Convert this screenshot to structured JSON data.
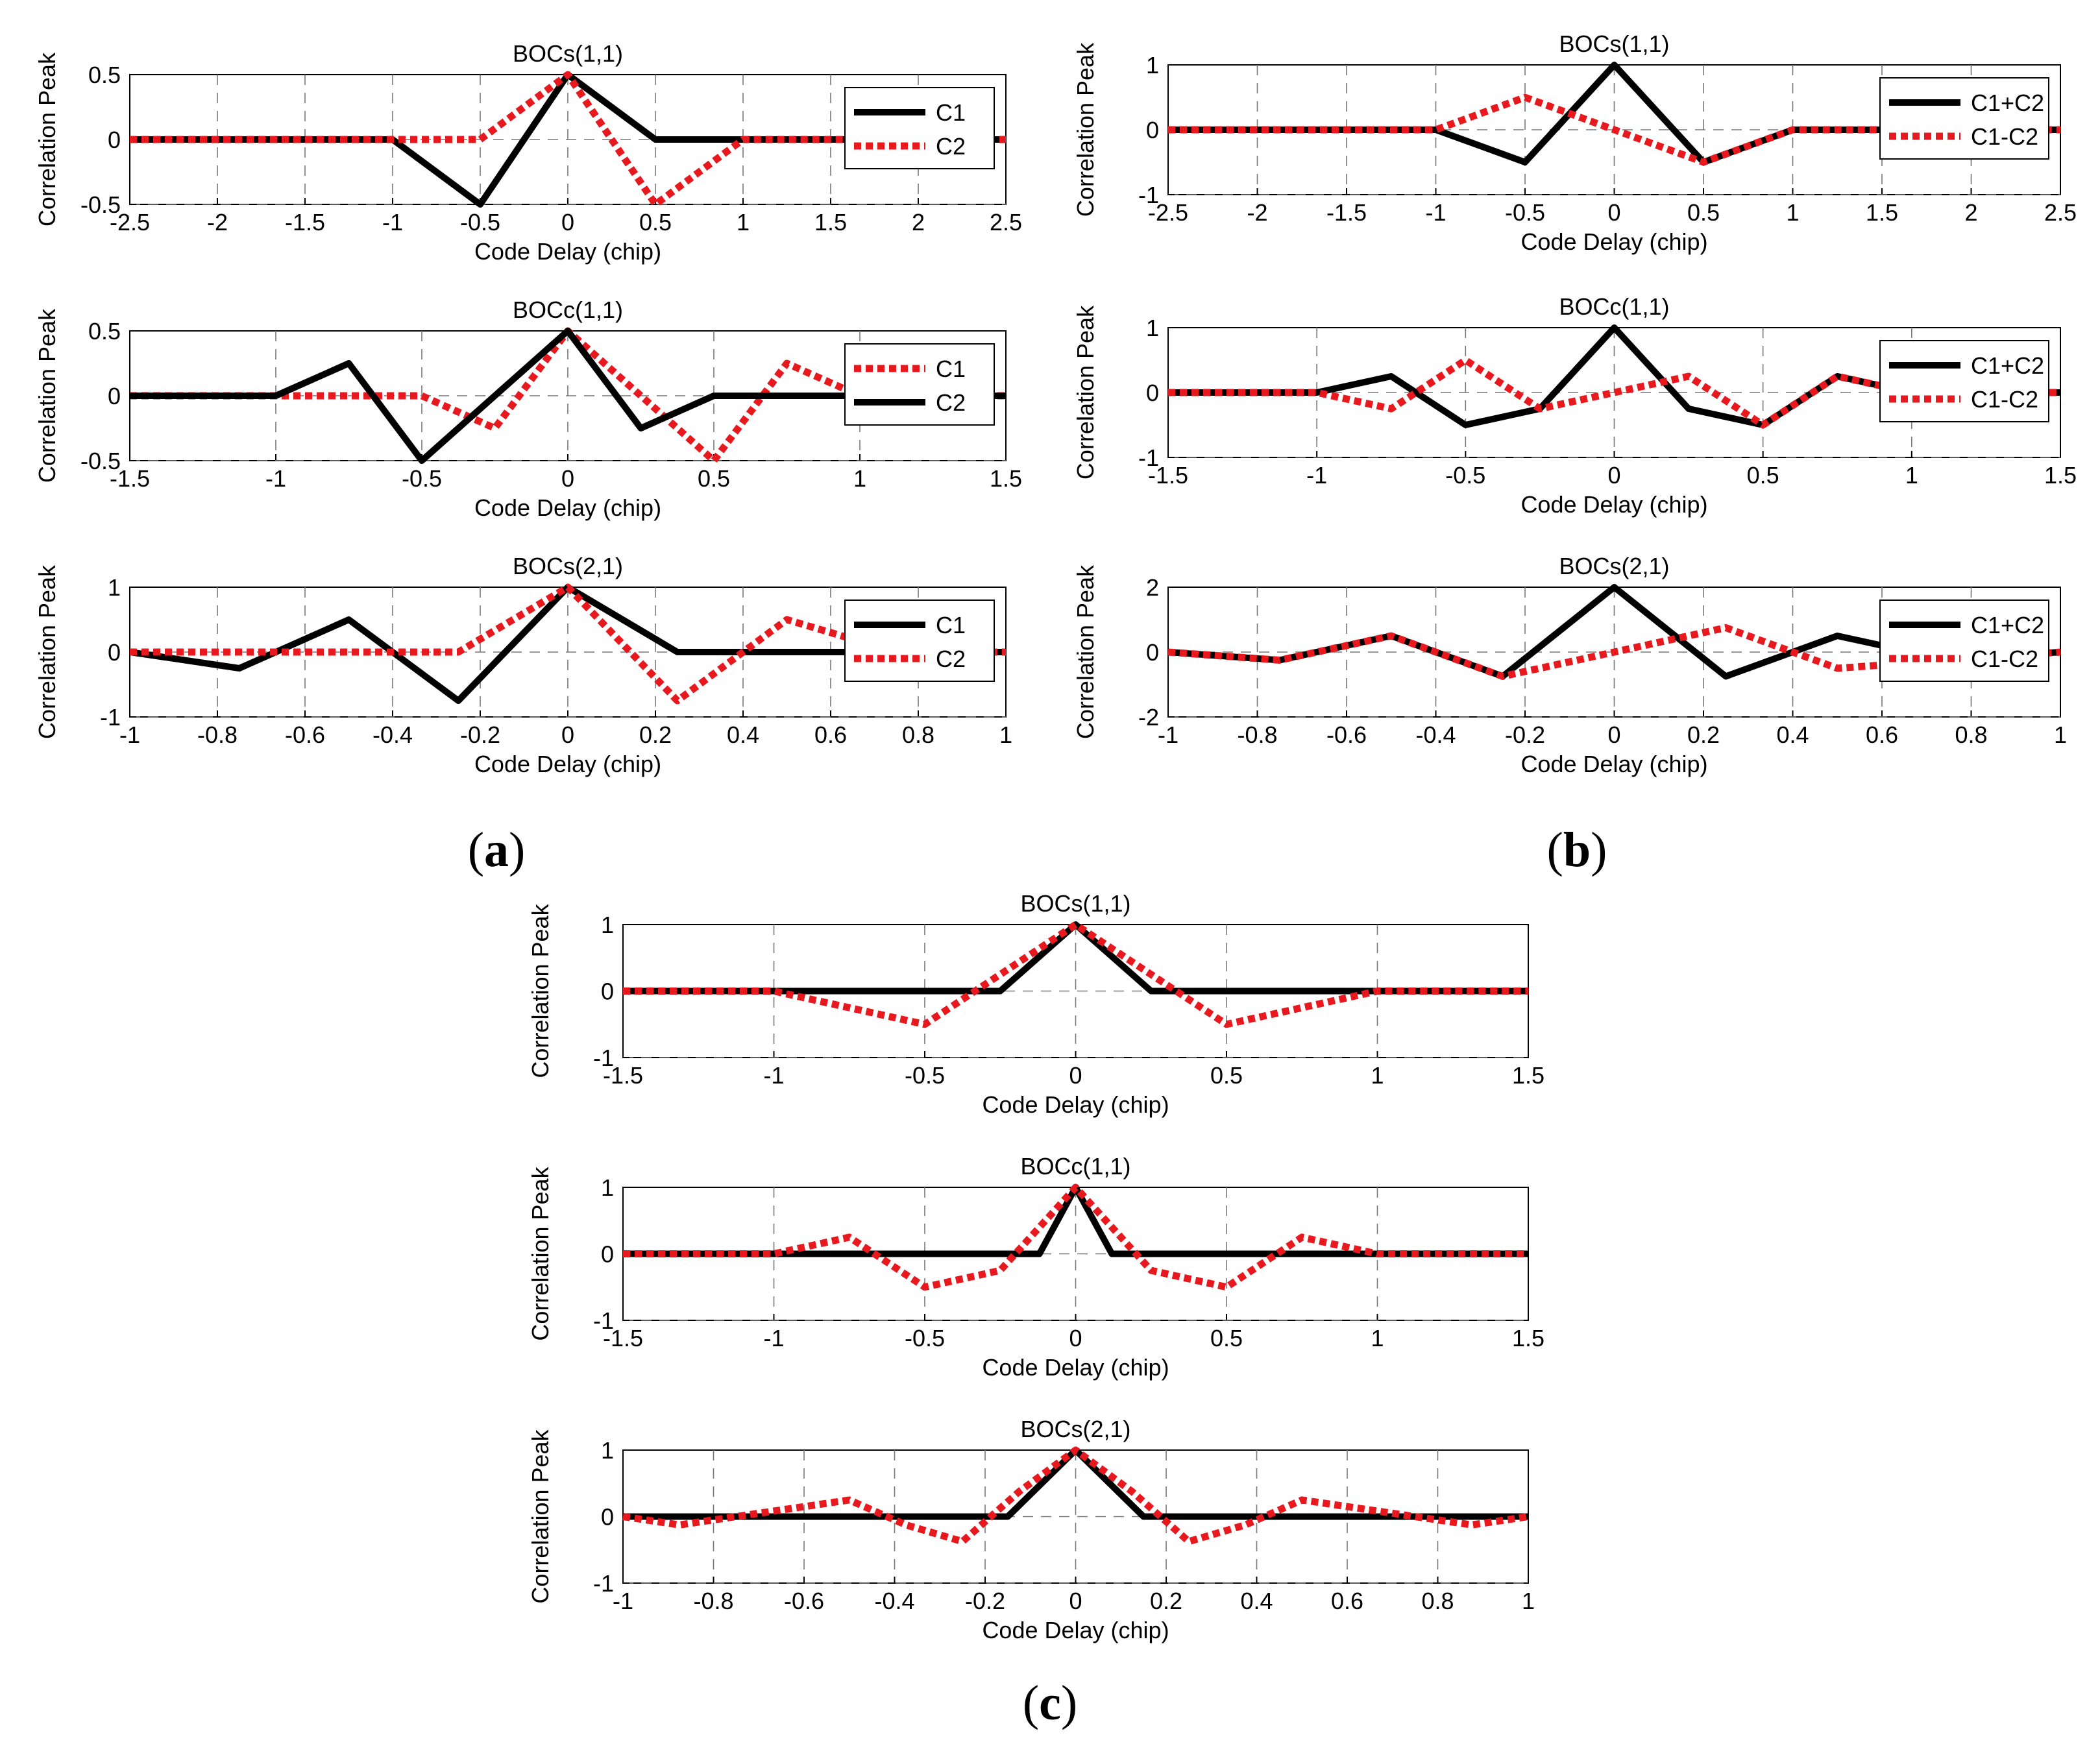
{
  "panel_labels": {
    "a": "a",
    "b": "b",
    "c": "c"
  },
  "chart_data": [
    {
      "id": "a1",
      "type": "line",
      "title": "BOCs(1,1)",
      "xlabel": "Code Delay (chip)",
      "ylabel": "Correlation Peak",
      "xlim": [
        -2.5,
        2.5
      ],
      "ylim": [
        -0.5,
        0.5
      ],
      "xticks": [
        "-2.5",
        "-2",
        "-1.5",
        "-1",
        "-0.5",
        "0",
        "0.5",
        "1",
        "1.5",
        "2",
        "2.5"
      ],
      "yticks": [
        "-0.5",
        "0",
        "0.5"
      ],
      "legend": "top-right",
      "series": [
        {
          "name": "C1",
          "color": "#000000",
          "style": "solid",
          "x": [
            -2.5,
            -1,
            -0.5,
            0,
            0.5,
            2.5
          ],
          "y": [
            0,
            0,
            -0.5,
            0.5,
            0,
            0
          ]
        },
        {
          "name": "C2",
          "color": "#e8191e",
          "style": "dotted",
          "x": [
            -2.5,
            -0.5,
            0,
            0.5,
            1,
            2.5
          ],
          "y": [
            0,
            0,
            0.5,
            -0.5,
            0,
            0
          ]
        }
      ]
    },
    {
      "id": "a2",
      "type": "line",
      "title": "BOCc(1,1)",
      "xlabel": "Code Delay (chip)",
      "ylabel": "Correlation Peak",
      "xlim": [
        -1.5,
        1.5
      ],
      "ylim": [
        -0.5,
        0.5
      ],
      "xticks": [
        "-1.5",
        "-1",
        "-0.5",
        "0",
        "0.5",
        "1",
        "1.5"
      ],
      "yticks": [
        "-0.5",
        "0",
        "0.5"
      ],
      "legend": "top-right",
      "series": [
        {
          "name": "C1",
          "color": "#e8191e",
          "style": "dotted",
          "x": [
            -1.5,
            -0.5,
            -0.25,
            0,
            0.5,
            0.75,
            1,
            1.5
          ],
          "y": [
            0,
            0,
            -0.25,
            0.5,
            -0.5,
            0.25,
            0,
            0
          ]
        },
        {
          "name": "C2",
          "color": "#000000",
          "style": "solid",
          "x": [
            -1.5,
            -1,
            -0.75,
            -0.5,
            0,
            0.25,
            0.5,
            1.5
          ],
          "y": [
            0,
            0,
            0.25,
            -0.5,
            0.5,
            -0.25,
            0,
            0
          ]
        }
      ]
    },
    {
      "id": "a3",
      "type": "line",
      "title": "BOCs(2,1)",
      "xlabel": "Code Delay (chip)",
      "ylabel": "Correlation Peak",
      "xlim": [
        -1,
        1
      ],
      "ylim": [
        -1,
        1
      ],
      "xticks": [
        "-1",
        "-0.8",
        "-0.6",
        "-0.4",
        "-0.2",
        "0",
        "0.2",
        "0.4",
        "0.6",
        "0.8",
        "1"
      ],
      "yticks": [
        "-1",
        "0",
        "1"
      ],
      "legend": "top-right",
      "series": [
        {
          "name": "C1",
          "color": "#000000",
          "style": "solid",
          "x": [
            -1,
            -0.75,
            -0.5,
            -0.25,
            0,
            0.25,
            1
          ],
          "y": [
            0,
            -0.25,
            0.5,
            -0.75,
            1,
            0,
            0
          ]
        },
        {
          "name": "C2",
          "color": "#e8191e",
          "style": "dotted",
          "x": [
            -1,
            -0.25,
            0,
            0.25,
            0.5,
            0.75,
            1
          ],
          "y": [
            0,
            0,
            1,
            -0.75,
            0.5,
            0,
            0
          ]
        }
      ]
    },
    {
      "id": "b1",
      "type": "line",
      "title": "BOCs(1,1)",
      "xlabel": "Code Delay (chip)",
      "ylabel": "Correlation Peak",
      "xlim": [
        -2.5,
        2.5
      ],
      "ylim": [
        -1,
        1
      ],
      "xticks": [
        "-2.5",
        "-2",
        "-1.5",
        "-1",
        "-0.5",
        "0",
        "0.5",
        "1",
        "1.5",
        "2",
        "2.5"
      ],
      "yticks": [
        "-1",
        "0",
        "1"
      ],
      "legend": "top-right",
      "series": [
        {
          "name": "C1+C2",
          "color": "#000000",
          "style": "solid",
          "x": [
            -2.5,
            -1,
            -0.5,
            0,
            0.5,
            1,
            2.5
          ],
          "y": [
            0,
            0,
            -0.5,
            1,
            -0.5,
            0,
            0
          ]
        },
        {
          "name": "C1-C2",
          "color": "#e8191e",
          "style": "dotted",
          "x": [
            -2.5,
            -1,
            -0.5,
            0,
            0.5,
            1,
            2.5
          ],
          "y": [
            0,
            0,
            0.5,
            0,
            -0.5,
            0,
            0
          ]
        }
      ]
    },
    {
      "id": "b2",
      "type": "line",
      "title": "BOCc(1,1)",
      "xlabel": "Code Delay (chip)",
      "ylabel": "Correlation Peak",
      "xlim": [
        -1.5,
        1.5
      ],
      "ylim": [
        -1,
        1
      ],
      "xticks": [
        "-1.5",
        "-1",
        "-0.5",
        "0",
        "0.5",
        "1",
        "1.5"
      ],
      "yticks": [
        "-1",
        "0",
        "1"
      ],
      "legend": "top-right",
      "series": [
        {
          "name": "C1+C2",
          "color": "#000000",
          "style": "solid",
          "x": [
            -1.5,
            -1,
            -0.75,
            -0.5,
            -0.25,
            0,
            0.25,
            0.5,
            0.75,
            1,
            1.5
          ],
          "y": [
            0,
            0,
            0.25,
            -0.5,
            -0.25,
            1,
            -0.25,
            -0.5,
            0.25,
            0,
            0
          ]
        },
        {
          "name": "C1-C2",
          "color": "#e8191e",
          "style": "dotted",
          "x": [
            -1.5,
            -1,
            -0.75,
            -0.5,
            -0.25,
            0,
            0.25,
            0.5,
            0.75,
            1,
            1.5
          ],
          "y": [
            0,
            0,
            -0.25,
            0.5,
            -0.25,
            0,
            0.25,
            -0.5,
            0.25,
            0,
            0
          ]
        }
      ]
    },
    {
      "id": "b3",
      "type": "line",
      "title": "BOCs(2,1)",
      "xlabel": "Code Delay (chip)",
      "ylabel": "Correlation Peak",
      "xlim": [
        -1,
        1
      ],
      "ylim": [
        -2,
        2
      ],
      "xticks": [
        "-1",
        "-0.8",
        "-0.6",
        "-0.4",
        "-0.2",
        "0",
        "0.2",
        "0.4",
        "0.6",
        "0.8",
        "1"
      ],
      "yticks": [
        "-2",
        "0",
        "2"
      ],
      "legend": "top-right",
      "series": [
        {
          "name": "C1+C2",
          "color": "#000000",
          "style": "solid",
          "x": [
            -1,
            -0.75,
            -0.5,
            -0.25,
            0,
            0.25,
            0.5,
            0.75,
            1
          ],
          "y": [
            0,
            -0.25,
            0.5,
            -0.75,
            2,
            -0.75,
            0.5,
            -0.25,
            0
          ]
        },
        {
          "name": "C1-C2",
          "color": "#e8191e",
          "style": "dotted",
          "x": [
            -1,
            -0.75,
            -0.5,
            -0.25,
            0,
            0.25,
            0.5,
            0.75,
            1
          ],
          "y": [
            0,
            -0.25,
            0.5,
            -0.75,
            0,
            0.75,
            -0.5,
            -0.25,
            0
          ]
        }
      ]
    },
    {
      "id": "c1",
      "type": "line",
      "title": "BOCs(1,1)",
      "xlabel": "Code Delay (chip)",
      "ylabel": "Correlation Peak",
      "xlim": [
        -1.5,
        1.5
      ],
      "ylim": [
        -1,
        1
      ],
      "xticks": [
        "-1.5",
        "-1",
        "-0.5",
        "0",
        "0.5",
        "1",
        "1.5"
      ],
      "yticks": [
        "-1",
        "0",
        "1"
      ],
      "legend": "none",
      "series": [
        {
          "name": "solid",
          "color": "#000000",
          "style": "solid",
          "x": [
            -1.5,
            -0.25,
            0,
            0.25,
            1.5
          ],
          "y": [
            0,
            0,
            1,
            0,
            0
          ]
        },
        {
          "name": "dotted",
          "color": "#e8191e",
          "style": "dotted",
          "x": [
            -1.5,
            -1,
            -0.5,
            0,
            0.5,
            1,
            1.5
          ],
          "y": [
            0,
            0,
            -0.5,
            1,
            -0.5,
            0,
            0
          ]
        }
      ]
    },
    {
      "id": "c2",
      "type": "line",
      "title": "BOCc(1,1)",
      "xlabel": "Code Delay (chip)",
      "ylabel": "Correlation Peak",
      "xlim": [
        -1.5,
        1.5
      ],
      "ylim": [
        -1,
        1
      ],
      "xticks": [
        "-1.5",
        "-1",
        "-0.5",
        "0",
        "0.5",
        "1",
        "1.5"
      ],
      "yticks": [
        "-1",
        "0",
        "1"
      ],
      "legend": "none",
      "series": [
        {
          "name": "solid",
          "color": "#000000",
          "style": "solid",
          "x": [
            -1.5,
            -0.12,
            0,
            0.12,
            1.5
          ],
          "y": [
            0,
            0,
            1,
            0,
            0
          ]
        },
        {
          "name": "dotted",
          "color": "#e8191e",
          "style": "dotted",
          "x": [
            -1.5,
            -1,
            -0.75,
            -0.5,
            -0.25,
            0,
            0.25,
            0.5,
            0.75,
            1,
            1.5
          ],
          "y": [
            0,
            0,
            0.25,
            -0.5,
            -0.25,
            1,
            -0.25,
            -0.5,
            0.25,
            0,
            0
          ]
        }
      ]
    },
    {
      "id": "c3",
      "type": "line",
      "title": "BOCs(2,1)",
      "xlabel": "Code Delay (chip)",
      "ylabel": "Correlation Peak",
      "xlim": [
        -1,
        1
      ],
      "ylim": [
        -1,
        1
      ],
      "xticks": [
        "-1",
        "-0.8",
        "-0.6",
        "-0.4",
        "-0.2",
        "0",
        "0.2",
        "0.4",
        "0.6",
        "0.8",
        "1"
      ],
      "yticks": [
        "-1",
        "0",
        "1"
      ],
      "legend": "none",
      "series": [
        {
          "name": "solid",
          "color": "#000000",
          "style": "solid",
          "x": [
            -1,
            -0.15,
            0,
            0.15,
            1
          ],
          "y": [
            0,
            0,
            1,
            0,
            0
          ]
        },
        {
          "name": "dotted",
          "color": "#e8191e",
          "style": "dotted",
          "x": [
            -1,
            -0.875,
            -0.75,
            -0.625,
            -0.5,
            -0.375,
            -0.25,
            -0.125,
            0,
            0.125,
            0.25,
            0.375,
            0.5,
            0.625,
            0.75,
            0.875,
            1
          ],
          "y": [
            0,
            -0.125,
            0,
            0.125,
            0.25,
            -0.125,
            -0.375,
            0.375,
            1,
            0.375,
            -0.375,
            -0.125,
            0.25,
            0.125,
            0,
            -0.125,
            0
          ]
        }
      ]
    }
  ]
}
